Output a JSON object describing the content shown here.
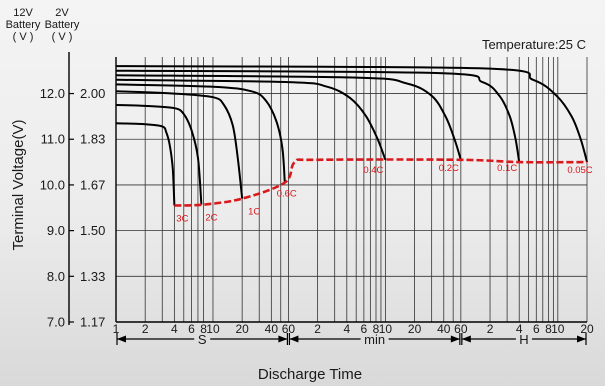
{
  "chart_data": {
    "type": "line",
    "title": "",
    "annotation": "Temperature:25 C",
    "xlabel": "Discharge Time",
    "ylabel": "Terminal Voltage(V)",
    "y_headers": {
      "v12": [
        "12V",
        "Battery",
        "( V )"
      ],
      "v2": [
        "2V",
        "Battery",
        "( V )"
      ]
    },
    "x_scale": "log",
    "x_unit": "seconds",
    "xlim": [
      1,
      72000
    ],
    "ylim": [
      7.0,
      12.8
    ],
    "y_ticks": [
      {
        "v12": "7.0",
        "v2": "1.17",
        "value": 7.0
      },
      {
        "v12": "8.0",
        "v2": "1.33",
        "value": 8.0
      },
      {
        "v12": "9.0",
        "v2": "1.50",
        "value": 9.0
      },
      {
        "v12": "10.0",
        "v2": "1.67",
        "value": 10.0
      },
      {
        "v12": "11.0",
        "v2": "1.83",
        "value": 11.0
      },
      {
        "v12": "12.0",
        "v2": "2.00",
        "value": 12.0
      }
    ],
    "x_ticks": [
      {
        "label": "1",
        "value": 1
      },
      {
        "label": "2",
        "value": 2
      },
      {
        "label": "4",
        "value": 4
      },
      {
        "label": "6",
        "value": 6
      },
      {
        "label": "8",
        "value": 8
      },
      {
        "label": "10",
        "value": 10
      },
      {
        "label": "20",
        "value": 20
      },
      {
        "label": "40",
        "value": 40
      },
      {
        "label": "60",
        "value": 60
      },
      {
        "label": "2",
        "value": 120
      },
      {
        "label": "4",
        "value": 240
      },
      {
        "label": "6",
        "value": 360
      },
      {
        "label": "8",
        "value": 480
      },
      {
        "label": "10",
        "value": 600
      },
      {
        "label": "20",
        "value": 1200
      },
      {
        "label": "40",
        "value": 2400
      },
      {
        "label": "60",
        "value": 3600
      },
      {
        "label": "2",
        "value": 7200
      },
      {
        "label": "4",
        "value": 14400
      },
      {
        "label": "6",
        "value": 21600
      },
      {
        "label": "8",
        "value": 28800
      },
      {
        "label": "10",
        "value": 36000
      },
      {
        "label": "20",
        "value": 72000
      }
    ],
    "extra_gridlines_x": [
      3,
      5,
      7,
      30,
      50,
      180,
      300,
      420,
      540,
      1800,
      3000,
      10800,
      18000,
      25200,
      32400
    ],
    "unit_ranges": [
      {
        "label": "S",
        "from": 1,
        "to": 60
      },
      {
        "label": "min",
        "from": 60,
        "to": 3600
      },
      {
        "label": "H",
        "from": 3600,
        "to": 72000
      }
    ],
    "end_voltage_color": "#d9191c",
    "curve_color": "#000000",
    "end_voltage_line": [
      [
        4,
        9.55
      ],
      [
        8,
        9.57
      ],
      [
        20,
        9.7
      ],
      [
        55,
        10.05
      ],
      [
        70,
        10.5
      ],
      [
        120,
        10.55
      ],
      [
        3600,
        10.55
      ],
      [
        14400,
        10.5
      ],
      [
        72000,
        10.5
      ]
    ],
    "series": [
      {
        "name": "3C",
        "points": [
          [
            1,
            11.35
          ],
          [
            2,
            11.33
          ],
          [
            3,
            11.28
          ],
          [
            3.3,
            11.15
          ],
          [
            3.6,
            10.85
          ],
          [
            3.85,
            10.35
          ],
          [
            4,
            9.55
          ]
        ]
      },
      {
        "name": "2C",
        "points": [
          [
            1,
            11.75
          ],
          [
            2,
            11.73
          ],
          [
            4,
            11.68
          ],
          [
            5,
            11.55
          ],
          [
            6,
            11.2
          ],
          [
            7,
            10.6
          ],
          [
            7.6,
            9.57
          ]
        ]
      },
      {
        "name": "1C",
        "points": [
          [
            1,
            12.05
          ],
          [
            4,
            12.0
          ],
          [
            10,
            11.92
          ],
          [
            13,
            11.75
          ],
          [
            16,
            11.3
          ],
          [
            18,
            10.6
          ],
          [
            20,
            9.7
          ]
        ]
      },
      {
        "name": "0.6C",
        "points": [
          [
            1,
            12.2
          ],
          [
            10,
            12.15
          ],
          [
            25,
            12.05
          ],
          [
            35,
            11.85
          ],
          [
            45,
            11.4
          ],
          [
            52,
            10.8
          ],
          [
            55,
            10.05
          ]
        ]
      },
      {
        "name": "0.4C",
        "points": [
          [
            1,
            12.3
          ],
          [
            60,
            12.25
          ],
          [
            150,
            12.15
          ],
          [
            260,
            11.9
          ],
          [
            380,
            11.5
          ],
          [
            500,
            11.0
          ],
          [
            600,
            10.55
          ]
        ]
      },
      {
        "name": "0.2C",
        "points": [
          [
            1,
            12.4
          ],
          [
            300,
            12.35
          ],
          [
            1000,
            12.22
          ],
          [
            1800,
            11.95
          ],
          [
            2500,
            11.5
          ],
          [
            3100,
            11.0
          ],
          [
            3600,
            10.55
          ]
        ]
      },
      {
        "name": "0.1C",
        "points": [
          [
            1,
            12.5
          ],
          [
            2000,
            12.45
          ],
          [
            6000,
            12.25
          ],
          [
            9000,
            11.95
          ],
          [
            11500,
            11.5
          ],
          [
            13200,
            11.0
          ],
          [
            14400,
            10.5
          ]
        ]
      },
      {
        "name": "0.05C",
        "points": [
          [
            1,
            12.6
          ],
          [
            6000,
            12.55
          ],
          [
            20000,
            12.3
          ],
          [
            35000,
            11.95
          ],
          [
            50000,
            11.5
          ],
          [
            62000,
            11.0
          ],
          [
            72000,
            10.5
          ]
        ]
      }
    ]
  }
}
